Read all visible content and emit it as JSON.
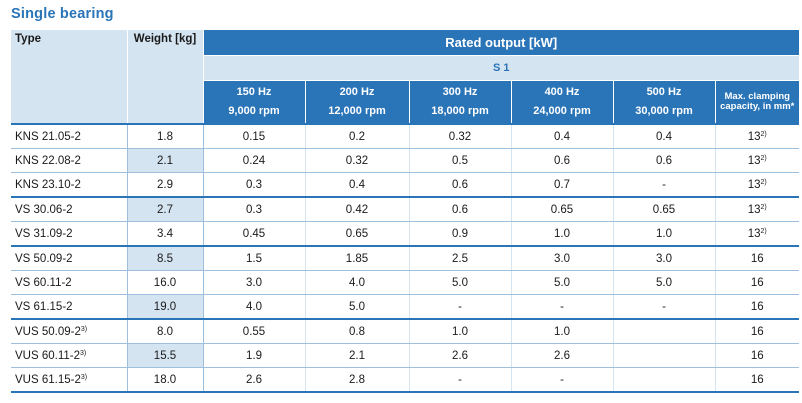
{
  "title": "Single bearing",
  "headers": {
    "type": "Type",
    "weight": "Weight [kg]",
    "rated_output": "Rated output [kW]",
    "s1": "S 1",
    "frequencies": [
      {
        "hz": "150 Hz",
        "rpm": "9,000 rpm"
      },
      {
        "hz": "200 Hz",
        "rpm": "12,000 rpm"
      },
      {
        "hz": "300 Hz",
        "rpm": "18,000 rpm"
      },
      {
        "hz": "400 Hz",
        "rpm": "24,000 rpm"
      },
      {
        "hz": "500 Hz",
        "rpm": "30,000 rpm"
      }
    ],
    "clamping": "Max. clamping capacity, in mm*"
  },
  "rows": [
    {
      "type": "KNS 21.05-2",
      "type_sup": "",
      "weight": "1.8",
      "v150": "0.15",
      "v200": "0.2",
      "v300": "0.32",
      "v400": "0.4",
      "v500": "0.4",
      "clamp": "13",
      "clamp_sup": "2)"
    },
    {
      "type": "KNS 22.08-2",
      "type_sup": "",
      "weight": "2.1",
      "v150": "0.24",
      "v200": "0.32",
      "v300": "0.5",
      "v400": "0.6",
      "v500": "0.6",
      "clamp": "13",
      "clamp_sup": "2)"
    },
    {
      "type": "KNS 23.10-2",
      "type_sup": "",
      "weight": "2.9",
      "v150": "0.3",
      "v200": "0.4",
      "v300": "0.6",
      "v400": "0.7",
      "v500": "-",
      "clamp": "13",
      "clamp_sup": "2)"
    },
    {
      "type": "VS 30.06-2",
      "type_sup": "",
      "weight": "2.7",
      "v150": "0.3",
      "v200": "0.42",
      "v300": "0.6",
      "v400": "0.65",
      "v500": "0.65",
      "clamp": "13",
      "clamp_sup": "2)"
    },
    {
      "type": "VS 31.09-2",
      "type_sup": "",
      "weight": "3.4",
      "v150": "0.45",
      "v200": "0.65",
      "v300": "0.9",
      "v400": "1.0",
      "v500": "1.0",
      "clamp": "13",
      "clamp_sup": "2)"
    },
    {
      "type": "VS 50.09-2",
      "type_sup": "",
      "weight": "8.5",
      "v150": "1.5",
      "v200": "1.85",
      "v300": "2.5",
      "v400": "3.0",
      "v500": "3.0",
      "clamp": "16",
      "clamp_sup": ""
    },
    {
      "type": "VS 60.11-2",
      "type_sup": "",
      "weight": "16.0",
      "v150": "3.0",
      "v200": "4.0",
      "v300": "5.0",
      "v400": "5.0",
      "v500": "5.0",
      "clamp": "16",
      "clamp_sup": ""
    },
    {
      "type": "VS 61.15-2",
      "type_sup": "",
      "weight": "19.0",
      "v150": "4.0",
      "v200": "5.0",
      "v300": "-",
      "v400": "-",
      "v500": "-",
      "clamp": "16",
      "clamp_sup": ""
    },
    {
      "type": "VUS 50.09-2",
      "type_sup": "3)",
      "weight": "8.0",
      "v150": "0.55",
      "v200": "0.8",
      "v300": "1.0",
      "v400": "1.0",
      "v500": "",
      "clamp": "16",
      "clamp_sup": ""
    },
    {
      "type": "VUS 60.11-2",
      "type_sup": "3)",
      "weight": "15.5",
      "v150": "1.9",
      "v200": "2.1",
      "v300": "2.6",
      "v400": "2.6",
      "v500": "",
      "clamp": "16",
      "clamp_sup": ""
    },
    {
      "type": "VUS 61.15-2",
      "type_sup": "3)",
      "weight": "18.0",
      "v150": "2.6",
      "v200": "2.8",
      "v300": "-",
      "v400": "-",
      "v500": "",
      "clamp": "16",
      "clamp_sup": ""
    }
  ]
}
